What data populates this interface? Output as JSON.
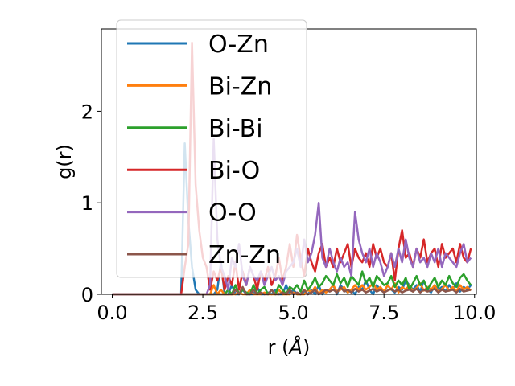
{
  "chart_data": {
    "type": "line",
    "xlabel_main": "r (",
    "xlabel_unit": "Å",
    "xlabel_close": ")",
    "ylabel": "g(r)",
    "xlim": [
      -0.3,
      10.05
    ],
    "ylim": [
      0,
      2.9
    ],
    "xticks": [
      0.0,
      2.5,
      5.0,
      7.5,
      10.0
    ],
    "xtick_labels": [
      "0.0",
      "2.5",
      "5.0",
      "7.5",
      "10.0"
    ],
    "yticks": [
      0,
      1,
      2
    ],
    "ytick_labels": [
      "0",
      "1",
      "2"
    ],
    "legend_placement": "upper-left",
    "x": [
      0.0,
      0.1,
      0.2,
      0.3,
      0.4,
      0.5,
      0.6,
      0.7,
      0.8,
      0.9,
      1.0,
      1.1,
      1.2,
      1.3,
      1.4,
      1.5,
      1.6,
      1.7,
      1.8,
      1.9,
      2.0,
      2.1,
      2.2,
      2.3,
      2.4,
      2.5,
      2.6,
      2.7,
      2.8,
      2.9,
      3.0,
      3.1,
      3.2,
      3.3,
      3.4,
      3.5,
      3.6,
      3.7,
      3.8,
      3.9,
      4.0,
      4.1,
      4.2,
      4.3,
      4.4,
      4.5,
      4.6,
      4.7,
      4.8,
      4.9,
      5.0,
      5.1,
      5.2,
      5.3,
      5.4,
      5.5,
      5.6,
      5.7,
      5.8,
      5.9,
      6.0,
      6.1,
      6.2,
      6.3,
      6.4,
      6.5,
      6.6,
      6.7,
      6.8,
      6.9,
      7.0,
      7.1,
      7.2,
      7.3,
      7.4,
      7.5,
      7.6,
      7.7,
      7.8,
      7.9,
      8.0,
      8.1,
      8.2,
      8.3,
      8.4,
      8.5,
      8.6,
      8.7,
      8.8,
      8.9,
      9.0,
      9.1,
      9.2,
      9.3,
      9.4,
      9.5,
      9.6,
      9.7,
      9.8,
      9.9
    ],
    "series": [
      {
        "name": "O-Zn",
        "color": "#1f77b4",
        "values": [
          0,
          0,
          0,
          0,
          0,
          0,
          0,
          0,
          0,
          0,
          0,
          0,
          0,
          0,
          0,
          0,
          0,
          0,
          0,
          0,
          1.65,
          0.8,
          0.3,
          0.05,
          0,
          0,
          0,
          0,
          0,
          0.05,
          0.35,
          0,
          0,
          0.1,
          0,
          0,
          0.05,
          0,
          0,
          0,
          0.08,
          0,
          0,
          0.02,
          0,
          0.05,
          0,
          0,
          0.1,
          0,
          0.05,
          0,
          0,
          0.02,
          0,
          0.05,
          0,
          0.1,
          0,
          0.05,
          0.05,
          0.1,
          0,
          0.1,
          0.05,
          0.02,
          0.05,
          0,
          0.08,
          0.05,
          0.15,
          0.05,
          0,
          0.1,
          0.05,
          0.02,
          0.1,
          0.05,
          0.02,
          0.08,
          0.05,
          0.15,
          0.1,
          0.05,
          0.1,
          0.03,
          0.15,
          0.05,
          0.02,
          0.1,
          0.05,
          0.08,
          0.03,
          0.1,
          0.05,
          0.12,
          0.03,
          0.08,
          0.05,
          0.1
        ]
      },
      {
        "name": "Bi-Zn",
        "color": "#ff7f0e",
        "values": [
          0,
          0,
          0,
          0,
          0,
          0,
          0,
          0,
          0,
          0,
          0,
          0,
          0,
          0,
          0,
          0,
          0,
          0,
          0,
          0,
          0,
          0,
          0,
          0,
          0,
          0,
          0,
          0,
          0.1,
          0,
          0.05,
          0,
          0,
          0,
          0,
          0.02,
          0,
          0,
          0.05,
          0,
          0,
          0,
          0.02,
          0,
          0,
          0,
          0.05,
          0,
          0,
          0,
          0.02,
          0,
          0,
          0,
          0.05,
          0.02,
          0.08,
          0,
          0.05,
          0.02,
          0.05,
          0.1,
          0.03,
          0.05,
          0.08,
          0.02,
          0.05,
          0.1,
          0.05,
          0.1,
          0.05,
          0.08,
          0.12,
          0.05,
          0.08,
          0.03,
          0.1,
          0.05,
          0.12,
          0.02,
          0.08,
          0.05,
          0.1,
          0.03,
          0.07,
          0.12,
          0.04,
          0.08,
          0.05,
          0.1,
          0.02,
          0.06,
          0.1,
          0.04,
          0.08,
          0.03,
          0.1,
          0.05,
          0.08,
          0.04
        ]
      },
      {
        "name": "Bi-Bi",
        "color": "#2ca02c",
        "values": [
          0,
          0,
          0,
          0,
          0,
          0,
          0,
          0,
          0,
          0,
          0,
          0,
          0,
          0,
          0,
          0,
          0,
          0,
          0,
          0,
          0,
          0,
          0,
          0,
          0,
          0,
          0,
          0,
          0,
          0,
          0,
          0,
          0.05,
          0,
          0.1,
          0,
          0.05,
          0.02,
          0,
          0.1,
          0,
          0.05,
          0.08,
          0,
          0.05,
          0,
          0.1,
          0.05,
          0,
          0.08,
          0.05,
          0.1,
          0.03,
          0.15,
          0.05,
          0.1,
          0.18,
          0.08,
          0.12,
          0.2,
          0.15,
          0.1,
          0.22,
          0.12,
          0.18,
          0.08,
          0.2,
          0.15,
          0.1,
          0.25,
          0.12,
          0.18,
          0.08,
          0.2,
          0.15,
          0.1,
          0.12,
          0.2,
          0.08,
          0.15,
          0.1,
          0.18,
          0.05,
          0.12,
          0.2,
          0.1,
          0.15,
          0.05,
          0.12,
          0.18,
          0.08,
          0.15,
          0.1,
          0.2,
          0.12,
          0.08,
          0.18,
          0.22,
          0.15,
          0.1
        ]
      },
      {
        "name": "Bi-O",
        "color": "#d62728",
        "values": [
          0,
          0,
          0,
          0,
          0,
          0,
          0,
          0,
          0,
          0,
          0,
          0,
          0,
          0,
          0,
          0,
          0,
          0,
          0,
          0,
          0.3,
          0.55,
          2.75,
          1.2,
          0.7,
          0.4,
          0.3,
          0.05,
          0.25,
          0.15,
          0.3,
          0.05,
          0.2,
          0.1,
          0.35,
          0.05,
          0.25,
          0.1,
          0.3,
          0.2,
          0.05,
          0.25,
          0.15,
          0.3,
          0.1,
          0.2,
          0.4,
          0.15,
          0.3,
          0.55,
          0.3,
          0.65,
          0.4,
          0.2,
          0.5,
          0.35,
          0.25,
          0.45,
          0.55,
          0.3,
          0.4,
          0.3,
          0.5,
          0.35,
          0.45,
          0.55,
          0.3,
          0.5,
          0.4,
          0.35,
          0.45,
          0.3,
          0.55,
          0.4,
          0.5,
          0.35,
          0.3,
          0.45,
          0.15,
          0.5,
          0.7,
          0.4,
          0.45,
          0.3,
          0.5,
          0.4,
          0.6,
          0.35,
          0.45,
          0.5,
          0.3,
          0.55,
          0.4,
          0.45,
          0.5,
          0.35,
          0.55,
          0.4,
          0.35,
          0.5
        ]
      },
      {
        "name": "O-O",
        "color": "#9467bd",
        "values": [
          0,
          0,
          0,
          0,
          0,
          0,
          0,
          0,
          0,
          0,
          0,
          0,
          0,
          0,
          0,
          0,
          0,
          0,
          0,
          0,
          0,
          0,
          0,
          0,
          0,
          0,
          0,
          0.1,
          1.7,
          0.6,
          0.3,
          0.2,
          0.05,
          0.4,
          0.3,
          0.55,
          0.2,
          0.1,
          0.3,
          0.2,
          0.15,
          0.25,
          0.1,
          0.2,
          0.3,
          0.15,
          0.2,
          0.1,
          0.25,
          0.3,
          0.35,
          0.5,
          0.3,
          0.6,
          0.35,
          0.45,
          0.65,
          1.0,
          0.4,
          0.3,
          0.5,
          0.35,
          0.25,
          0.4,
          0.3,
          0.35,
          0.2,
          0.9,
          0.6,
          0.45,
          0.35,
          0.5,
          0.3,
          0.45,
          0.35,
          0.2,
          0.3,
          0.45,
          0.3,
          0.5,
          0.35,
          0.6,
          0.4,
          0.3,
          0.5,
          0.35,
          0.4,
          0.3,
          0.45,
          0.35,
          0.5,
          0.3,
          0.45,
          0.4,
          0.35,
          0.3,
          0.45,
          0.55,
          0.35,
          0.4
        ]
      },
      {
        "name": "Zn-Zn",
        "color": "#8c564b",
        "values": [
          0,
          0,
          0,
          0,
          0,
          0,
          0,
          0,
          0,
          0,
          0,
          0,
          0,
          0,
          0,
          0,
          0,
          0,
          0,
          0,
          0,
          0,
          0,
          0,
          0,
          0,
          0,
          0,
          0,
          0,
          0,
          0,
          0,
          0,
          0.05,
          0,
          0.08,
          0,
          0,
          0.05,
          0,
          0.02,
          0,
          0,
          0.05,
          0,
          0,
          0.02,
          0,
          0.05,
          0,
          0.02,
          0,
          0.05,
          0,
          0.02,
          0.05,
          0,
          0.02,
          0.05,
          0.03,
          0.05,
          0.02,
          0.08,
          0.03,
          0.05,
          0.02,
          0.06,
          0.03,
          0.05,
          0.02,
          0.04,
          0.06,
          0.03,
          0.05,
          0.02,
          0.04,
          0.06,
          0.03,
          0.05,
          0.02,
          0.04,
          0.05,
          0.03,
          0.06,
          0.02,
          0.05,
          0.03,
          0.04,
          0.06,
          0.02,
          0.05,
          0.03,
          0.04,
          0.05,
          0.02,
          0.06,
          0.03,
          0.04,
          0.05
        ]
      }
    ]
  }
}
